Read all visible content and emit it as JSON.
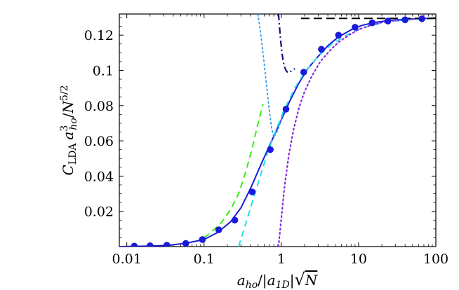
{
  "chart_data": {
    "type": "line",
    "title": "",
    "xlabel_parts": {
      "a": "a",
      "ho": "ho",
      "slash": "/|",
      "a1d": "a",
      "sub1d": "1D",
      "bar": "|",
      "radical": "√",
      "N": "N"
    },
    "ylabel_parts": {
      "C": "C",
      "lda": "LDA",
      "a": "a",
      "ho": "ho",
      "exp3": "3",
      "slash": "/",
      "N": "N",
      "exp": "5/2"
    },
    "xscale": "log",
    "xlim": [
      0.008,
      100
    ],
    "ylim": [
      0,
      0.132
    ],
    "xticks": [
      {
        "value": 0.01,
        "label": "0.01"
      },
      {
        "value": 0.1,
        "label": "0.1"
      },
      {
        "value": 1,
        "label": "1"
      },
      {
        "value": 10,
        "label": "10"
      },
      {
        "value": 100,
        "label": "100"
      }
    ],
    "yticks": [
      {
        "value": 0.02,
        "label": "0.02"
      },
      {
        "value": 0.04,
        "label": "0.04"
      },
      {
        "value": 0.06,
        "label": "0.06"
      },
      {
        "value": 0.08,
        "label": "0.08"
      },
      {
        "value": 0.1,
        "label": "0.1"
      },
      {
        "value": 0.12,
        "label": "0.12"
      }
    ],
    "grid": false,
    "legend": "none",
    "series": [
      {
        "style": "solid",
        "color": "#1a1adb",
        "width": 2,
        "x": [
          0.008,
          0.02,
          0.035,
          0.06,
          0.1,
          0.15,
          0.22,
          0.3,
          0.4,
          0.55,
          0.75,
          1.0,
          1.3,
          1.7,
          2.2,
          3,
          4,
          5.5,
          8,
          11,
          16,
          25,
          40,
          70,
          100
        ],
        "y": [
          0,
          0.0003,
          0.0007,
          0.002,
          0.004,
          0.008,
          0.014,
          0.022,
          0.033,
          0.047,
          0.06,
          0.072,
          0.083,
          0.093,
          0.101,
          0.108,
          0.114,
          0.119,
          0.123,
          0.1255,
          0.1272,
          0.1283,
          0.129,
          0.1295,
          0.1296
        ]
      },
      {
        "style": "dashed",
        "color": "#22e0e0",
        "width": 2,
        "x": [
          0.28,
          0.33,
          0.4,
          0.5,
          0.65,
          0.85,
          1.1,
          1.5,
          2,
          3,
          4.5,
          7,
          11,
          18,
          30,
          50,
          80,
          100
        ],
        "y": [
          0,
          0.01,
          0.022,
          0.036,
          0.052,
          0.066,
          0.078,
          0.09,
          0.099,
          0.108,
          0.115,
          0.12,
          0.124,
          0.1265,
          0.128,
          0.1289,
          0.1293,
          0.1295
        ]
      },
      {
        "style": "dashed",
        "color": "#33ee11",
        "width": 2,
        "x": [
          0.1,
          0.13,
          0.17,
          0.22,
          0.28,
          0.35,
          0.42,
          0.5,
          0.58
        ],
        "y": [
          0.005,
          0.009,
          0.014,
          0.021,
          0.03,
          0.043,
          0.056,
          0.07,
          0.081
        ]
      },
      {
        "style": "dotted",
        "color": "#8a2be2",
        "width": 2.2,
        "x": [
          0.92,
          1.0,
          1.1,
          1.25,
          1.45,
          1.7,
          2,
          2.5,
          3.2,
          4.2,
          5.5,
          7.5,
          10,
          14,
          20,
          30,
          50,
          80
        ],
        "y": [
          0,
          0.016,
          0.034,
          0.052,
          0.067,
          0.079,
          0.088,
          0.097,
          0.105,
          0.111,
          0.116,
          0.12,
          0.1232,
          0.1255,
          0.1272,
          0.1283,
          0.1291,
          0.1295
        ]
      },
      {
        "style": "dotted",
        "color": "#3399ee",
        "width": 1.8,
        "x": [
          0.5,
          0.55,
          0.6,
          0.65,
          0.7,
          0.75,
          0.8,
          0.9,
          1.0,
          1.1
        ],
        "y": [
          0.132,
          0.118,
          0.104,
          0.09,
          0.077,
          0.067,
          0.062,
          0.066,
          0.072,
          0.078
        ]
      },
      {
        "style": "dashdot",
        "color": "#10107a",
        "width": 2.2,
        "x": [
          0.92,
          0.95,
          0.98,
          1.02,
          1.06,
          1.1,
          1.15,
          1.2,
          1.28,
          1.38,
          1.5
        ],
        "y": [
          0.132,
          0.124,
          0.117,
          0.11,
          0.105,
          0.102,
          0.1,
          0.099,
          0.099,
          0.1,
          0.101
        ]
      },
      {
        "style": "longdash",
        "color": "#000000",
        "width": 2,
        "x": [
          1.8,
          100
        ],
        "y": [
          0.1295,
          0.1295
        ]
      },
      {
        "style": "markers",
        "color": "#1a1adb",
        "x": [
          0.0125,
          0.02,
          0.033,
          0.058,
          0.095,
          0.155,
          0.25,
          0.42,
          0.72,
          1.15,
          1.95,
          3.3,
          5.5,
          9,
          15,
          24,
          40,
          66
        ],
        "y": [
          0.0003,
          0.0005,
          0.0008,
          0.0018,
          0.004,
          0.0095,
          0.015,
          0.031,
          0.055,
          0.078,
          0.099,
          0.112,
          0.12,
          0.1245,
          0.127,
          0.128,
          0.1287,
          0.1293
        ]
      }
    ]
  }
}
